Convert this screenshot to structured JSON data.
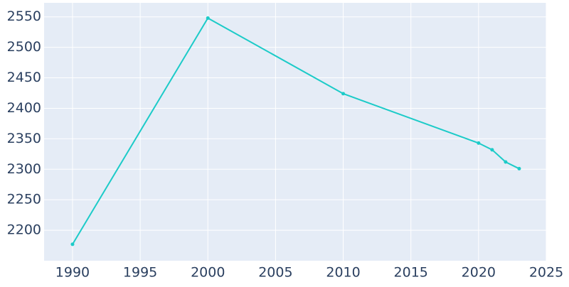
{
  "chart_data": {
    "type": "line",
    "x": [
      1990,
      2000,
      2010,
      2020,
      2021,
      2022,
      2023
    ],
    "series": [
      {
        "color": "#1ccbc8",
        "values": [
          2177,
          2548,
          2424,
          2343,
          2332,
          2312,
          2301
        ]
      }
    ],
    "xlim": [
      1987.9,
      2025
    ],
    "xticks": [
      1990,
      1995,
      2000,
      2005,
      2010,
      2015,
      2020,
      2025
    ],
    "ylim": [
      2150,
      2573
    ],
    "yticks": [
      2200,
      2250,
      2300,
      2350,
      2400,
      2450,
      2500,
      2550
    ],
    "grid": true
  }
}
